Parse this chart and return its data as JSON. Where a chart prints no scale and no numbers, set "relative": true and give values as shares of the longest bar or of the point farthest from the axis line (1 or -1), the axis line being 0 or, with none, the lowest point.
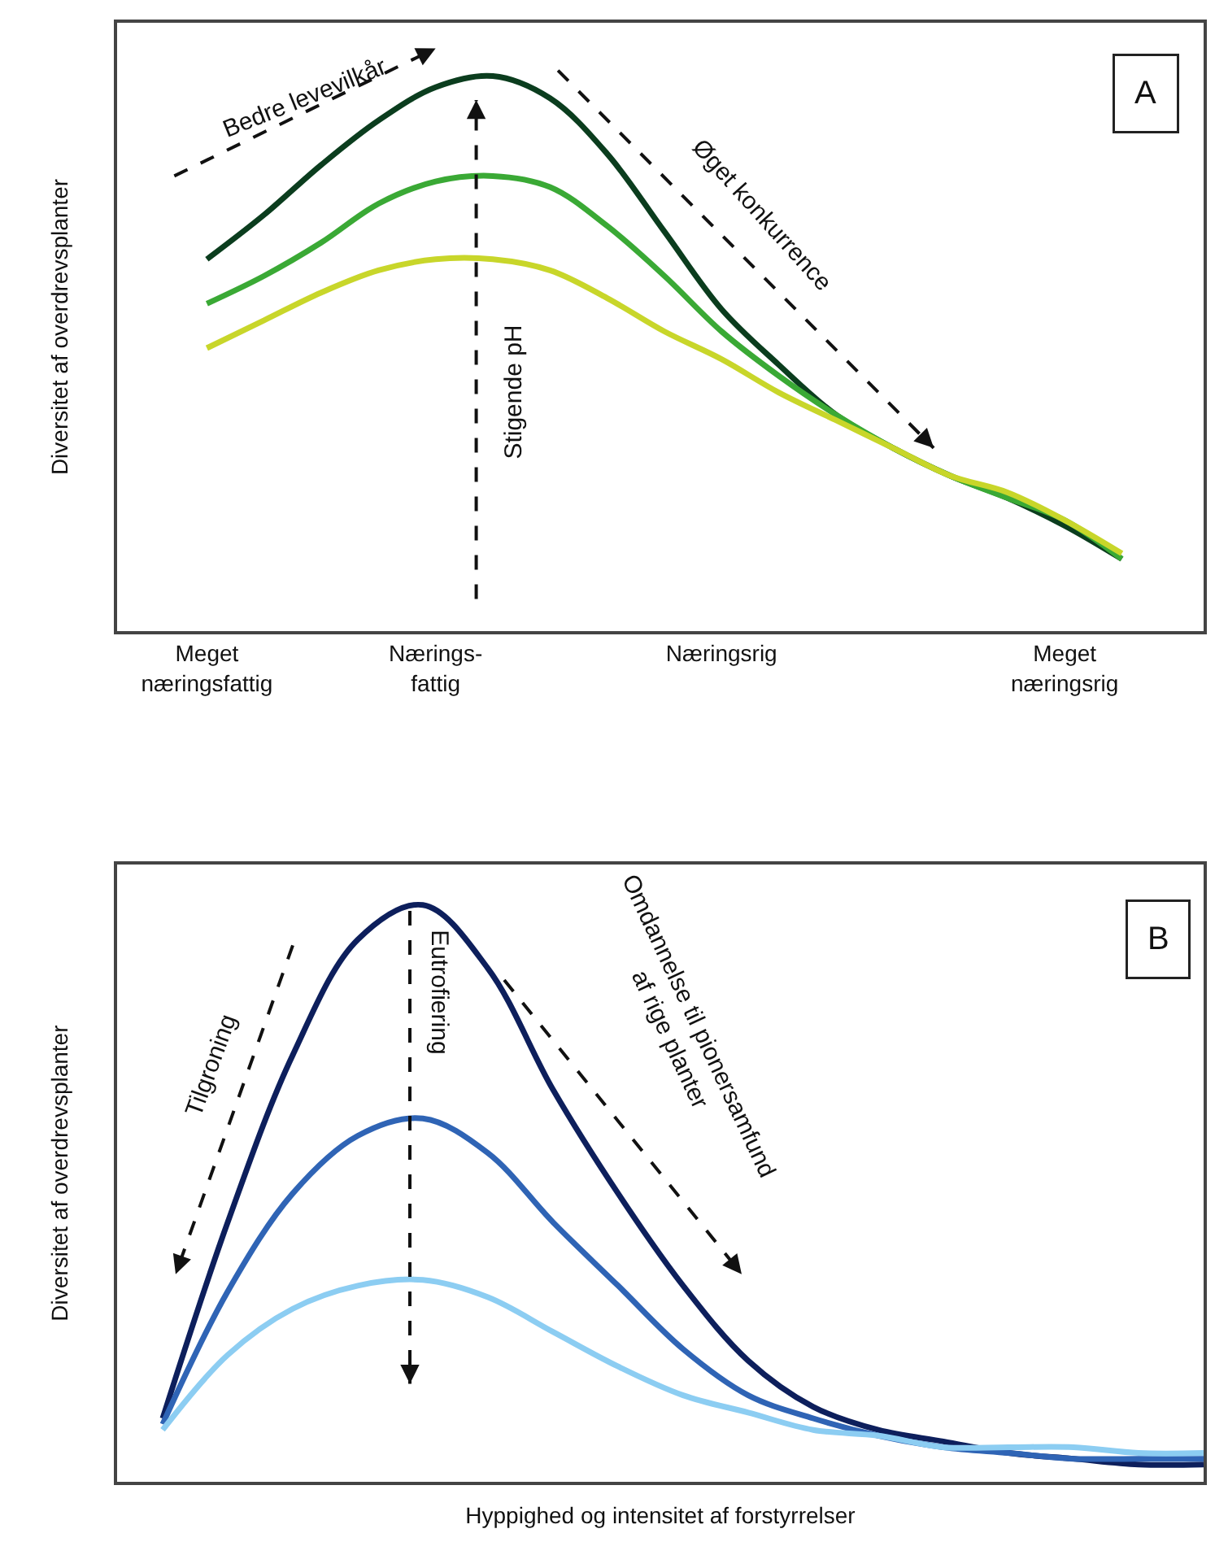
{
  "chart_data": [
    {
      "type": "line",
      "relative": true,
      "ylabel": "Diversitet af overdrevsplanter",
      "categories": [
        "Meget\nnæringsfattig",
        null,
        null,
        null,
        "Nærings-\nfattig",
        null,
        null,
        null,
        null,
        "Næringsrig",
        null,
        null,
        null,
        null,
        null,
        "Meget\nnæringsrig",
        null
      ],
      "tick_labels": "x",
      "series": [
        {
          "color": "#0b3d1e",
          "values": [
            0.67,
            0.75,
            0.84,
            0.92,
            0.98,
            1,
            0.96,
            0.86,
            0.72,
            0.58,
            0.48,
            0.39,
            0.33,
            0.28,
            0.24,
            0.19,
            0.13
          ]
        },
        {
          "color": "#3aa935",
          "values": [
            0.59,
            0.64,
            0.7,
            0.77,
            0.81,
            0.82,
            0.8,
            0.73,
            0.64,
            0.54,
            0.46,
            0.39,
            0.33,
            0.28,
            0.24,
            0.2,
            0.13
          ]
        },
        {
          "color": "#c8d62a",
          "values": [
            0.51,
            0.56,
            0.61,
            0.65,
            0.67,
            0.67,
            0.65,
            0.6,
            0.54,
            0.49,
            0.43,
            0.38,
            0.33,
            0.28,
            0.25,
            0.2,
            0.14
          ]
        }
      ],
      "annotations": [
        "A",
        "Bedre levevilkår",
        "Stigende pH",
        "Øget konkurrence"
      ]
    },
    {
      "type": "line",
      "relative": true,
      "ylabel": "Diversitet af overdrevsplanter",
      "xlabel": "Hyppighed og intensitet af forstyrrelser",
      "categories": [
        null,
        null,
        null,
        null,
        null,
        null,
        null,
        null,
        null,
        null,
        null,
        null,
        null,
        null,
        null,
        null,
        null
      ],
      "tick_labels": false,
      "series": [
        {
          "color": "#0d1f5c",
          "values": [
            0.11,
            0.45,
            0.74,
            0.94,
            1,
            0.89,
            0.68,
            0.5,
            0.34,
            0.21,
            0.13,
            0.09,
            0.07,
            0.05,
            0.04,
            0.03,
            0.03
          ]
        },
        {
          "color": "#2f64b5",
          "values": [
            0.1,
            0.33,
            0.5,
            0.6,
            0.63,
            0.57,
            0.45,
            0.34,
            0.23,
            0.15,
            0.11,
            0.08,
            0.06,
            0.05,
            0.04,
            0.04,
            0.04
          ]
        },
        {
          "color": "#8ccdf2",
          "values": [
            0.09,
            0.22,
            0.3,
            0.34,
            0.35,
            0.32,
            0.26,
            0.2,
            0.15,
            0.12,
            0.09,
            0.08,
            0.06,
            0.06,
            0.06,
            0.05,
            0.05
          ]
        }
      ],
      "annotations": [
        "B",
        "Tilgroning",
        "Eutrofiering",
        "Omdannelse til pionersamfund\naf rige planter"
      ]
    }
  ]
}
